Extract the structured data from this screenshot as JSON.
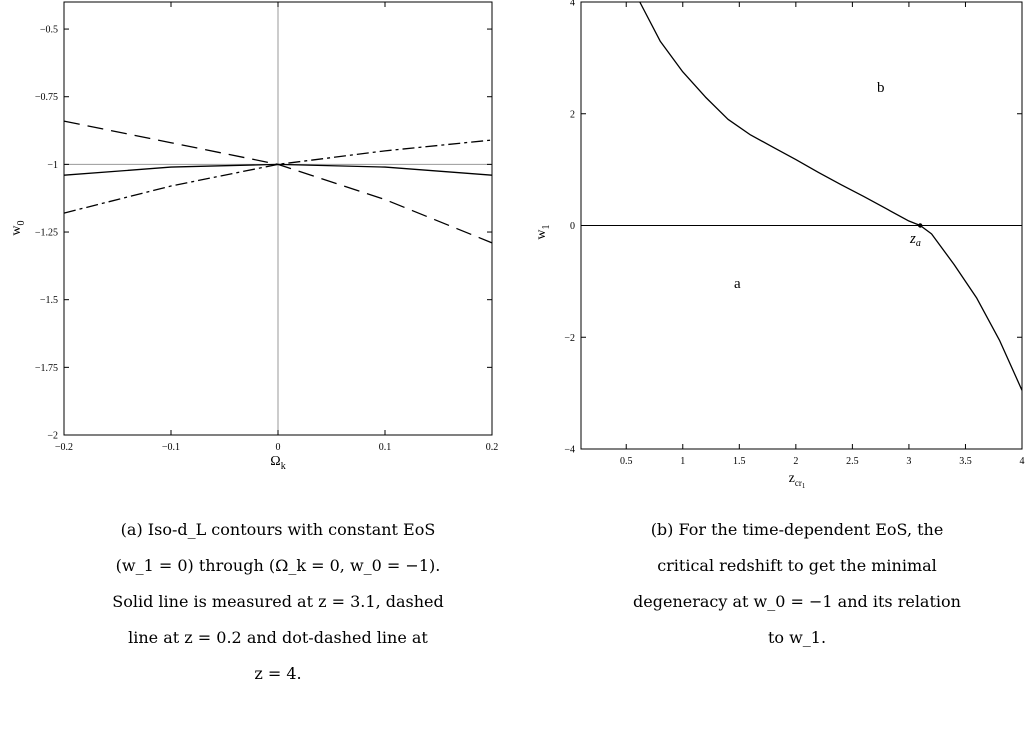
{
  "chart_data": [
    {
      "type": "line",
      "xlabel": "Ω",
      "xlabel_sub": "k",
      "ylabel": "w",
      "ylabel_sub": "0",
      "xlim": [
        -0.2,
        0.2
      ],
      "ylim": [
        -2,
        -0.4
      ],
      "xticks": [
        -0.2,
        -0.1,
        0,
        0.1,
        0.2
      ],
      "xtick_labels": [
        "−0.2",
        "−0.1",
        "0",
        "0.1",
        "0.2"
      ],
      "yticks": [
        -2,
        -1.75,
        -1.5,
        -1.25,
        -1,
        -0.75,
        -0.5
      ],
      "ytick_labels": [
        "−2",
        "−1.75",
        "−1.5",
        "−1.25",
        "−1",
        "−0.75",
        "−0.5"
      ],
      "reference_lines": {
        "x": 0,
        "y": -1
      },
      "series": [
        {
          "style": "solid",
          "x": [
            -0.2,
            -0.1,
            0,
            0.1,
            0.2
          ],
          "y": [
            -1.04,
            -1.01,
            -1.0,
            -1.01,
            -1.04
          ]
        },
        {
          "style": "dashed",
          "x": [
            -0.2,
            -0.1,
            0,
            0.1,
            0.2
          ],
          "y": [
            -0.84,
            -0.92,
            -1.0,
            -1.13,
            -1.29
          ]
        },
        {
          "style": "dot-dashed",
          "x": [
            -0.2,
            -0.1,
            0,
            0.1,
            0.2
          ],
          "y": [
            -1.18,
            -1.08,
            -1.0,
            -0.95,
            -0.91
          ]
        }
      ]
    },
    {
      "type": "line",
      "xlabel": "z",
      "xlabel_sub": "cr",
      "xlabel_subsub": "1",
      "ylabel": "w",
      "ylabel_sub": "1",
      "xlim": [
        0.1,
        4
      ],
      "ylim": [
        -4,
        4
      ],
      "xticks": [
        0.5,
        1,
        1.5,
        2,
        2.5,
        3,
        3.5,
        4
      ],
      "xtick_labels": [
        "0.5",
        "1",
        "1.5",
        "2",
        "2.5",
        "3",
        "3.5",
        "4"
      ],
      "yticks": [
        -4,
        -2,
        0,
        2,
        4
      ],
      "ytick_labels": [
        "−4",
        "−2",
        "0",
        "2",
        "4"
      ],
      "reference_lines": {
        "y": 0
      },
      "series": [
        {
          "style": "solid",
          "x": [
            0.62,
            0.8,
            1.0,
            1.2,
            1.4,
            1.6,
            1.8,
            2.0,
            2.2,
            2.4,
            2.6,
            2.8,
            3.0,
            3.1,
            3.2,
            3.4,
            3.6,
            3.8,
            4.0
          ],
          "y": [
            4.0,
            3.3,
            2.75,
            2.3,
            1.9,
            1.62,
            1.4,
            1.18,
            0.95,
            0.73,
            0.52,
            0.3,
            0.08,
            0.0,
            -0.15,
            -0.7,
            -1.3,
            -2.05,
            -2.95
          ]
        }
      ],
      "point": {
        "x": 3.1,
        "y": 0
      },
      "annotations": {
        "a": "a",
        "b": "b",
        "za_main": "z",
        "za_sub": "a"
      }
    }
  ],
  "captions": {
    "a": [
      "(a)   Iso-d_L contours with constant EoS",
      "(w_1 = 0) through (Ω_k = 0, w_0 = −1).",
      "Solid line is measured at z = 3.1, dashed",
      "line at z = 0.2 and dot-dashed line at",
      "z = 4."
    ],
    "b": [
      "(b)   For the time-dependent EoS, the",
      "critical redshift to get the minimal",
      "degeneracy at w_0 = −1 and its relation",
      "to w_1."
    ]
  }
}
